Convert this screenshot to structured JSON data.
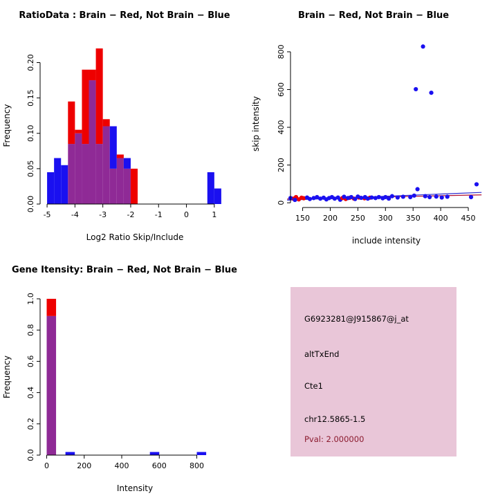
{
  "colors": {
    "red": "#ee0000",
    "blue": "#1a10f0",
    "overlap": "#8f2a96",
    "trend_red": "#b01030",
    "trend_blue": "#2a2ad0",
    "axis": "#000000"
  },
  "panels": {
    "info_box": {
      "bg": "#e9c6d8",
      "lines": [
        {
          "text": "G6923281@J915867@j_at",
          "color": "#000000"
        },
        {
          "text": "altTxEnd",
          "color": "#000000"
        },
        {
          "text": "Cte1",
          "color": "#000000"
        },
        {
          "text": "chr12.5865-1.5",
          "color": "#000000"
        },
        {
          "text": "Pval: 2.000000",
          "color": "#8b1a2e"
        }
      ]
    }
  },
  "chart_data": [
    {
      "id": "ratio_hist",
      "type": "bar",
      "title": "RatioData : Brain − Red, Not Brain − Blue",
      "xlabel": "Log2 Ratio Skip/Include",
      "ylabel": "Frequency",
      "xlim": [
        -5.25,
        1.55
      ],
      "ylim": [
        0,
        0.222
      ],
      "xticks": [
        -5,
        -4,
        -3,
        -2,
        -1,
        0,
        1
      ],
      "yticks": [
        "0.00",
        "0.05",
        "0.10",
        "0.15",
        "0.20"
      ],
      "bin_width": 0.25,
      "legend": [
        {
          "name": "Brain",
          "color": "red"
        },
        {
          "name": "Not Brain",
          "color": "blue"
        }
      ],
      "bins": [
        {
          "x": -5.0,
          "red": 0,
          "blue": 0.045
        },
        {
          "x": -4.75,
          "red": 0,
          "blue": 0.065
        },
        {
          "x": -4.5,
          "red": 0,
          "blue": 0.055
        },
        {
          "x": -4.25,
          "red": 0.145,
          "blue": 0.085
        },
        {
          "x": -4.0,
          "red": 0.105,
          "blue": 0.1
        },
        {
          "x": -3.75,
          "red": 0.19,
          "blue": 0.085
        },
        {
          "x": -3.5,
          "red": 0.19,
          "blue": 0.175
        },
        {
          "x": -3.25,
          "red": 0.22,
          "blue": 0.085
        },
        {
          "x": -3.0,
          "red": 0.12,
          "blue": 0.11
        },
        {
          "x": -2.75,
          "red": 0.05,
          "blue": 0.11
        },
        {
          "x": -2.5,
          "red": 0.07,
          "blue": 0.065
        },
        {
          "x": -2.25,
          "red": 0.05,
          "blue": 0.065
        },
        {
          "x": -2.0,
          "red": 0.05,
          "blue": 0
        },
        {
          "x": 0.75,
          "red": 0,
          "blue": 0.045
        },
        {
          "x": 1.0,
          "red": 0,
          "blue": 0.022
        }
      ]
    },
    {
      "id": "intensity_scatter",
      "type": "scatter",
      "title": "Brain − Red, Not Brain − Blue",
      "xlabel": "include intensity",
      "ylabel": "skip intensity",
      "xlim": [
        128,
        475
      ],
      "ylim": [
        -25,
        862
      ],
      "xticks": [
        150,
        200,
        250,
        300,
        350,
        400,
        450
      ],
      "yticks": [
        0,
        200,
        400,
        600,
        800
      ],
      "points": [
        {
          "x": 133,
          "y": 22,
          "c": "red"
        },
        {
          "x": 138,
          "y": 30,
          "c": "red"
        },
        {
          "x": 143,
          "y": 18,
          "c": "red"
        },
        {
          "x": 148,
          "y": 27,
          "c": "red"
        },
        {
          "x": 152,
          "y": 24,
          "c": "red"
        },
        {
          "x": 128,
          "y": 25,
          "c": "blue"
        },
        {
          "x": 136,
          "y": 15,
          "c": "blue"
        },
        {
          "x": 158,
          "y": 28,
          "c": "blue"
        },
        {
          "x": 163,
          "y": 20,
          "c": "blue"
        },
        {
          "x": 170,
          "y": 25,
          "c": "blue"
        },
        {
          "x": 176,
          "y": 30,
          "c": "blue"
        },
        {
          "x": 182,
          "y": 22,
          "c": "blue"
        },
        {
          "x": 188,
          "y": 27,
          "c": "blue"
        },
        {
          "x": 193,
          "y": 18,
          "c": "blue"
        },
        {
          "x": 198,
          "y": 25,
          "c": "blue"
        },
        {
          "x": 203,
          "y": 30,
          "c": "blue"
        },
        {
          "x": 208,
          "y": 22,
          "c": "blue"
        },
        {
          "x": 214,
          "y": 28,
          "c": "blue"
        },
        {
          "x": 218,
          "y": 16,
          "c": "blue"
        },
        {
          "x": 222,
          "y": 25,
          "c": "red"
        },
        {
          "x": 228,
          "y": 20,
          "c": "red"
        },
        {
          "x": 235,
          "y": 26,
          "c": "red"
        },
        {
          "x": 243,
          "y": 22,
          "c": "red"
        },
        {
          "x": 252,
          "y": 28,
          "c": "red"
        },
        {
          "x": 262,
          "y": 24,
          "c": "red"
        },
        {
          "x": 272,
          "y": 27,
          "c": "red"
        },
        {
          "x": 225,
          "y": 32,
          "c": "blue"
        },
        {
          "x": 232,
          "y": 25,
          "c": "blue"
        },
        {
          "x": 238,
          "y": 30,
          "c": "blue"
        },
        {
          "x": 245,
          "y": 20,
          "c": "blue"
        },
        {
          "x": 250,
          "y": 33,
          "c": "blue"
        },
        {
          "x": 256,
          "y": 26,
          "c": "blue"
        },
        {
          "x": 263,
          "y": 30,
          "c": "blue"
        },
        {
          "x": 268,
          "y": 22,
          "c": "blue"
        },
        {
          "x": 275,
          "y": 28,
          "c": "blue"
        },
        {
          "x": 282,
          "y": 25,
          "c": "blue"
        },
        {
          "x": 288,
          "y": 30,
          "c": "blue"
        },
        {
          "x": 295,
          "y": 24,
          "c": "blue"
        },
        {
          "x": 300,
          "y": 30,
          "c": "blue"
        },
        {
          "x": 306,
          "y": 22,
          "c": "blue"
        },
        {
          "x": 312,
          "y": 35,
          "c": "blue"
        },
        {
          "x": 322,
          "y": 28,
          "c": "blue"
        },
        {
          "x": 332,
          "y": 32,
          "c": "blue"
        },
        {
          "x": 345,
          "y": 30,
          "c": "blue"
        },
        {
          "x": 352,
          "y": 38,
          "c": "blue"
        },
        {
          "x": 358,
          "y": 72,
          "c": "blue"
        },
        {
          "x": 355,
          "y": 602,
          "c": "blue"
        },
        {
          "x": 368,
          "y": 828,
          "c": "blue"
        },
        {
          "x": 383,
          "y": 583,
          "c": "blue"
        },
        {
          "x": 372,
          "y": 35,
          "c": "blue"
        },
        {
          "x": 380,
          "y": 30,
          "c": "blue"
        },
        {
          "x": 392,
          "y": 33,
          "c": "blue"
        },
        {
          "x": 402,
          "y": 28,
          "c": "blue"
        },
        {
          "x": 412,
          "y": 32,
          "c": "blue"
        },
        {
          "x": 455,
          "y": 30,
          "c": "blue"
        },
        {
          "x": 465,
          "y": 98,
          "c": "blue"
        }
      ],
      "trend_lines": [
        {
          "c": "red",
          "x1": 122,
          "y1": 20,
          "x2": 474,
          "y2": 42
        },
        {
          "c": "blue",
          "x1": 122,
          "y1": 14,
          "x2": 474,
          "y2": 55
        }
      ]
    },
    {
      "id": "gene_hist",
      "type": "bar",
      "title": "Gene Itensity: Brain − Red, Not Brain − Blue",
      "xlabel": "Intensity",
      "ylabel": "Frequency",
      "xlim": [
        -35,
        975
      ],
      "ylim": [
        0,
        1.0
      ],
      "xticks": [
        0,
        200,
        400,
        600,
        800
      ],
      "yticks": [
        "0.0",
        "0.2",
        "0.4",
        "0.6",
        "0.8",
        "1.0"
      ],
      "bin_width": 50,
      "bins": [
        {
          "x": 0,
          "red": 1.0,
          "blue": 0.89
        },
        {
          "x": 100,
          "red": 0,
          "blue": 0.02
        },
        {
          "x": 550,
          "red": 0,
          "blue": 0.02
        },
        {
          "x": 800,
          "red": 0,
          "blue": 0.02
        }
      ]
    }
  ]
}
